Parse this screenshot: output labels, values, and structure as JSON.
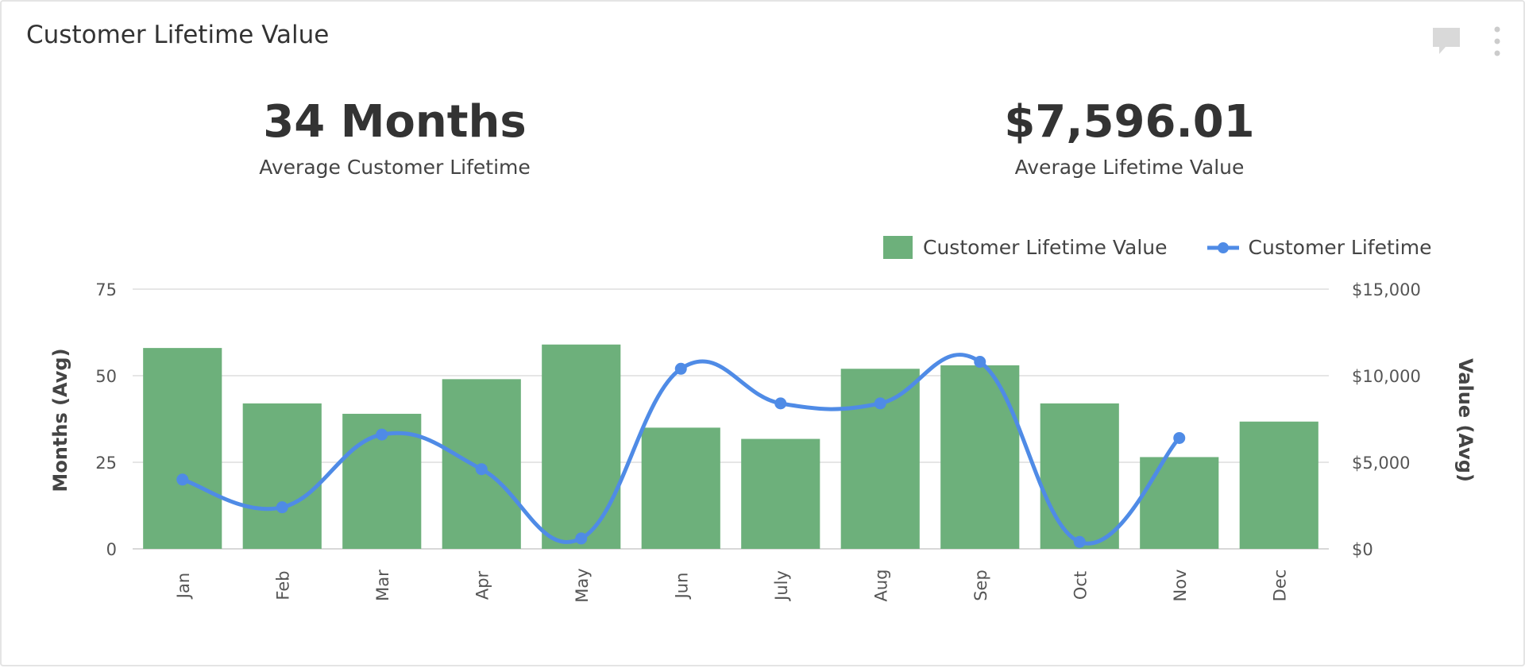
{
  "header": {
    "title": "Customer Lifetime Value",
    "icons": [
      "comment-icon",
      "more-vertical-icon"
    ]
  },
  "kpis": [
    {
      "value": "34 Months",
      "label": "Average Customer Lifetime"
    },
    {
      "value": "$7,596.01",
      "label": "Average Lifetime Value"
    }
  ],
  "chart_data": {
    "type": "bar+line",
    "categories": [
      "Jan",
      "Feb",
      "Mar",
      "Apr",
      "May",
      "Jun",
      "July",
      "Aug",
      "Sep",
      "Oct",
      "Nov",
      "Dec"
    ],
    "series": [
      {
        "name": "Customer Lifetime Value",
        "type": "bar",
        "axis": "right",
        "color": "#6db07b",
        "values": [
          11600,
          8400,
          7800,
          9800,
          11800,
          7000,
          6350,
          10400,
          10600,
          8400,
          5300,
          7350
        ]
      },
      {
        "name": "Customer Lifetime",
        "type": "line",
        "axis": "left",
        "color": "#4f8be6",
        "smooth": true,
        "values": [
          20,
          12,
          33,
          23,
          3,
          52,
          42,
          42,
          54,
          2,
          32,
          null
        ]
      }
    ],
    "left_axis": {
      "label": "Months (Avg)",
      "ylim": [
        0,
        75
      ],
      "ticks": [
        "0",
        "25",
        "50",
        "75"
      ]
    },
    "right_axis": {
      "label": "Value (Avg)",
      "ylim": [
        0,
        15000
      ],
      "ticks": [
        "$0",
        "$5,000",
        "$10,000",
        "$15,000"
      ]
    },
    "grid": true,
    "legend": "top-right"
  }
}
